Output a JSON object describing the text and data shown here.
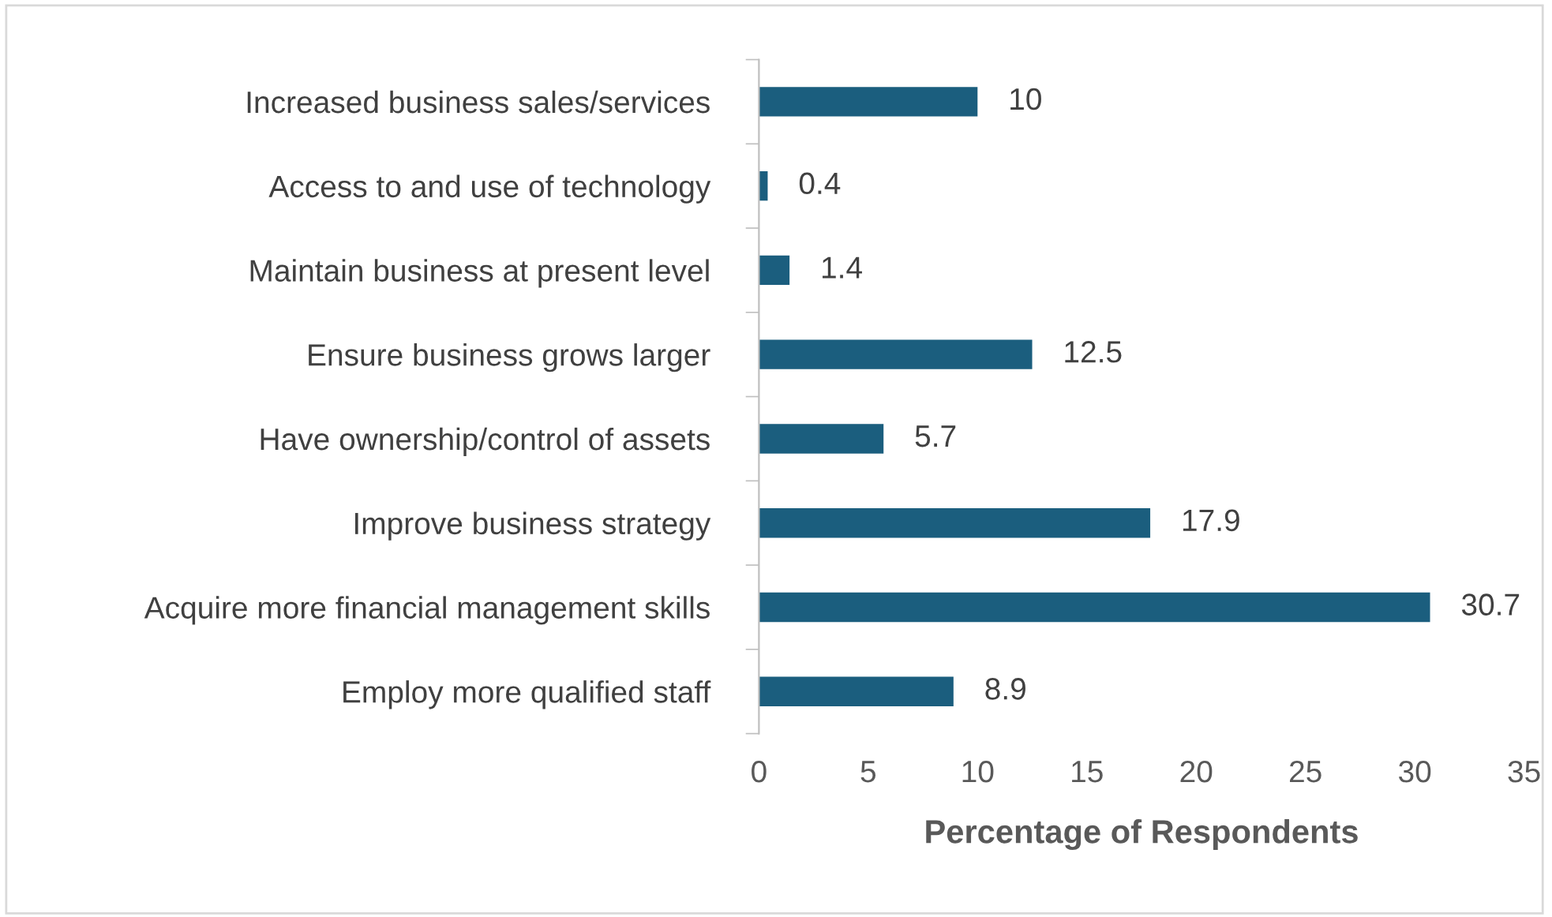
{
  "chart_data": {
    "type": "bar",
    "orientation": "horizontal",
    "xlabel": "Percentage of Respondents",
    "categories": [
      "Increased business sales/services",
      "Access to and use of technology",
      "Maintain business at present level",
      "Ensure business grows larger",
      "Have ownership/control of assets",
      "Improve business strategy",
      "Acquire more financial management skills",
      "Employ more qualified staff"
    ],
    "values": [
      10,
      0.4,
      1.4,
      12.5,
      5.7,
      17.9,
      30.7,
      8.9
    ],
    "color": "#1b5e7e",
    "xlim": [
      0,
      35
    ],
    "xticks": [
      0,
      5,
      10,
      15,
      20,
      25,
      30,
      35
    ],
    "data_labels": true,
    "grid": false,
    "legend": false
  }
}
